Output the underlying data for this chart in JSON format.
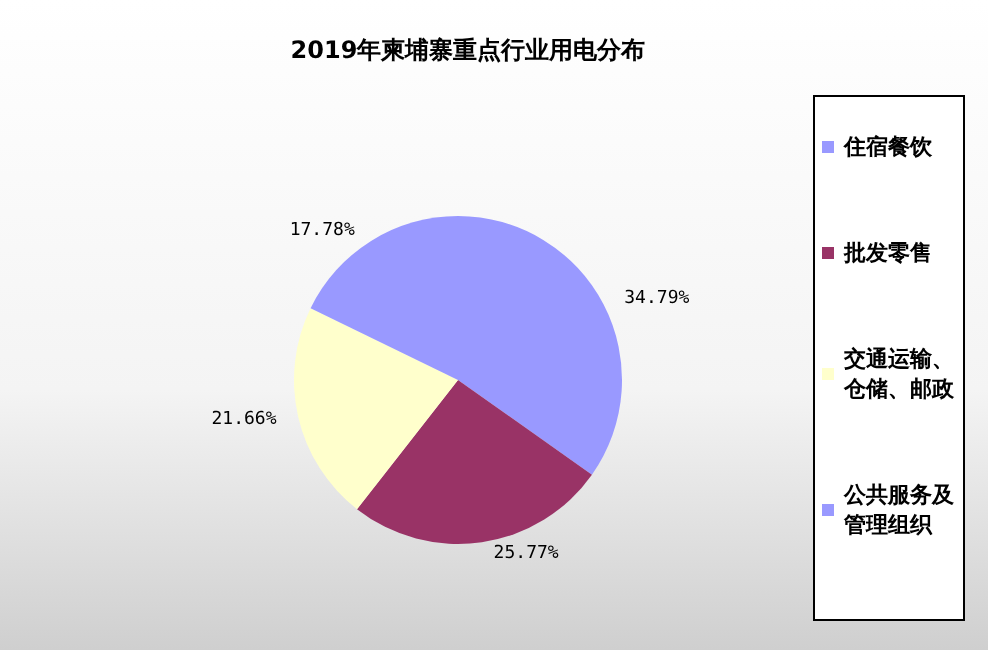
{
  "chart_data": {
    "type": "pie",
    "title": "2019年柬埔寨重点行业用电分布",
    "categories": [
      "住宿餐饮",
      "批发零售",
      "交通运输、仓储、邮政",
      "公共服务及管理组织"
    ],
    "values": [
      34.79,
      25.77,
      21.66,
      17.78
    ],
    "colors": [
      "#9999ff",
      "#993366",
      "#ffffcc",
      "#9999ff"
    ],
    "value_labels": [
      "34.79%",
      "25.77%",
      "21.66%",
      "17.78%"
    ],
    "legend": "right"
  }
}
